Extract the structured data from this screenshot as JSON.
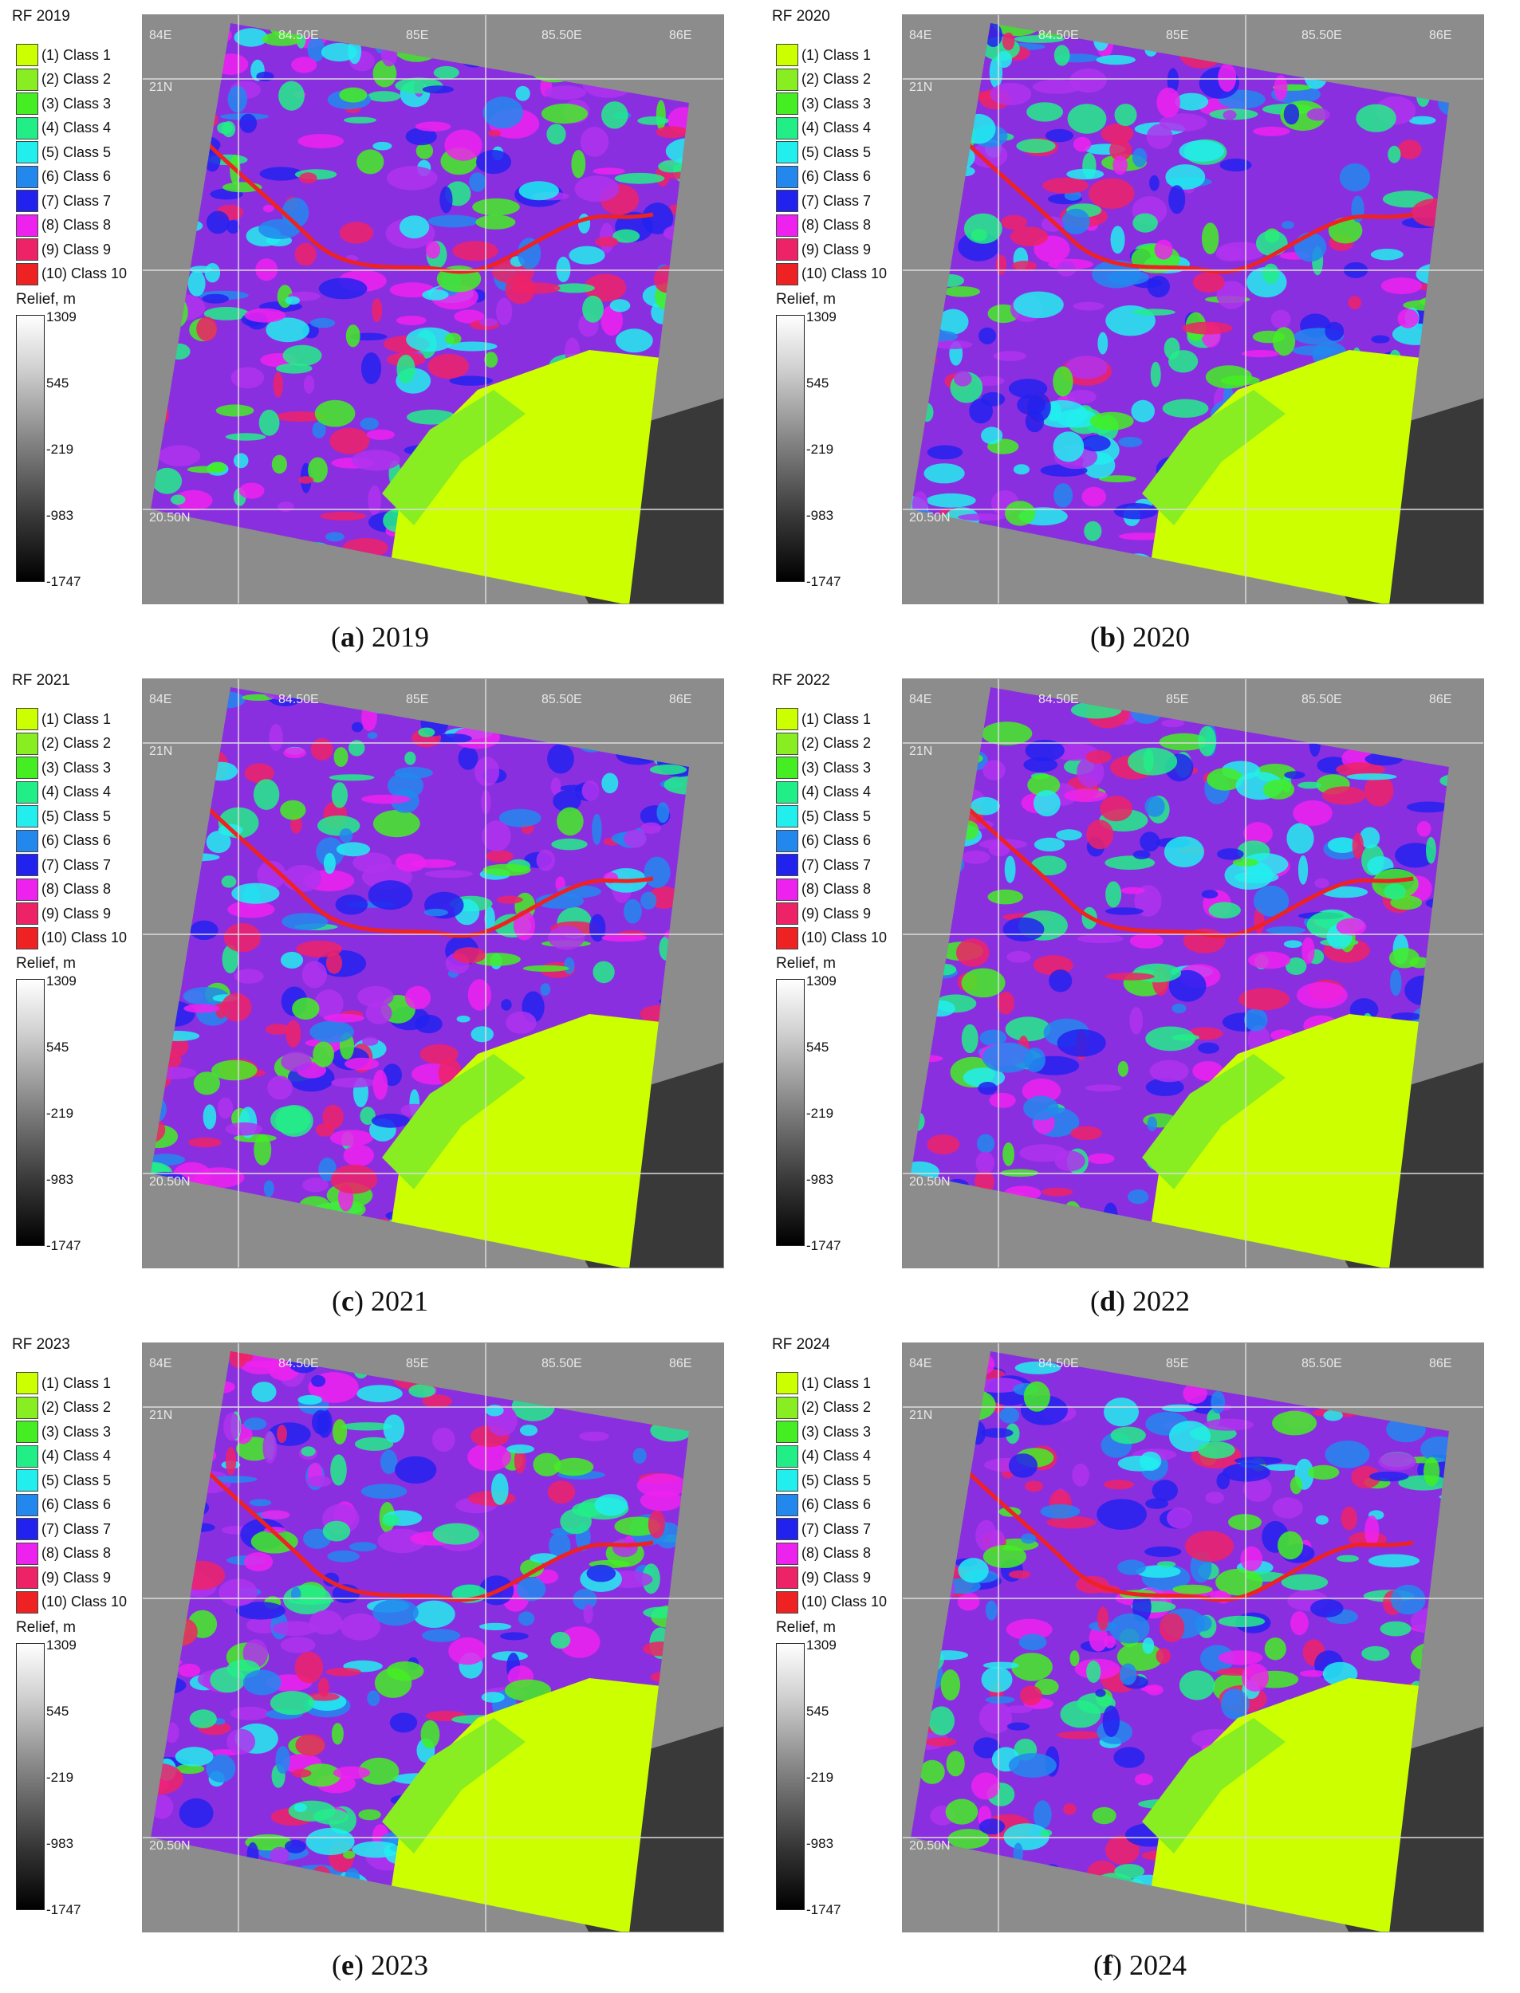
{
  "legend_items": [
    {
      "label": "(1) Class 1",
      "color": "#ccff00"
    },
    {
      "label": "(2) Class 2",
      "color": "#88ee22"
    },
    {
      "label": "(3) Class 3",
      "color": "#44ee22"
    },
    {
      "label": "(4) Class 4",
      "color": "#22ee88"
    },
    {
      "label": "(5) Class 5",
      "color": "#22eeee"
    },
    {
      "label": "(6) Class 6",
      "color": "#2288ee"
    },
    {
      "label": "(7) Class 7",
      "color": "#2222ee"
    },
    {
      "label": "(8) Class 8",
      "color": "#ee22ee"
    },
    {
      "label": "(9) Class 9",
      "color": "#ee2266"
    },
    {
      "label": "(10) Class 10",
      "color": "#ee2222"
    }
  ],
  "relief": {
    "title": "Relief, m",
    "ticks": [
      "1309",
      "545",
      "-219",
      "-983",
      "-1747"
    ]
  },
  "coord_labels": [
    "84E",
    "84.50E",
    "85E",
    "85.50E",
    "86E",
    "21N",
    "20.50N"
  ],
  "panels": [
    {
      "title": "RF 2019",
      "caption_letter": "a",
      "caption_year": "2019"
    },
    {
      "title": "RF 2020",
      "caption_letter": "b",
      "caption_year": "2020"
    },
    {
      "title": "RF 2021",
      "caption_letter": "c",
      "caption_year": "2021"
    },
    {
      "title": "RF 2022",
      "caption_letter": "d",
      "caption_year": "2022"
    },
    {
      "title": "RF 2023",
      "caption_letter": "e",
      "caption_year": "2023"
    },
    {
      "title": "RF 2024",
      "caption_letter": "f",
      "caption_year": "2024"
    }
  ]
}
